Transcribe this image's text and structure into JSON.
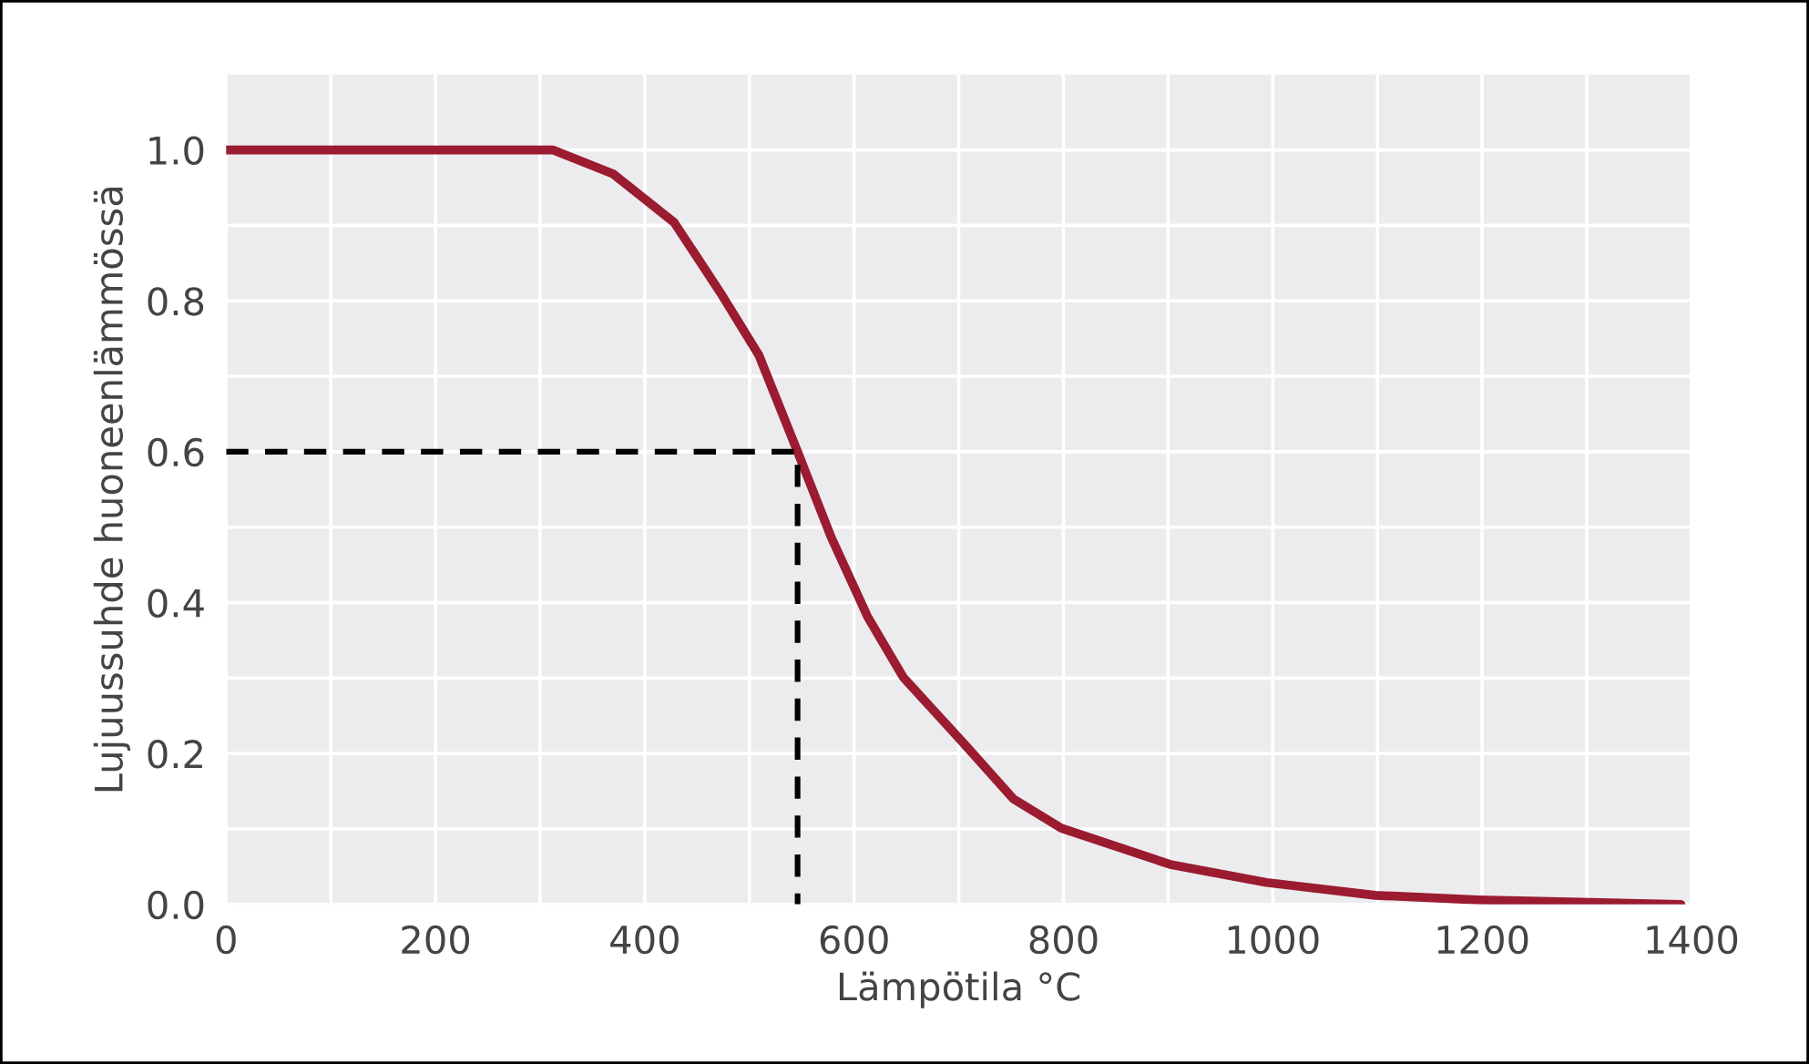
{
  "chart_data": {
    "type": "line",
    "xlabel": "Lämpötila °C",
    "ylabel": "Lujuussuhde huoneenlämmössä",
    "series": [
      {
        "color": "#9b1b30",
        "x": [
          0,
          100,
          200,
          312,
          370,
          428,
          474,
          509,
          546,
          578,
          613,
          647,
          705,
          752,
          798,
          902,
          994,
          1098,
          1196,
          1390
        ],
        "values": [
          1.0,
          1.0,
          1.0,
          1.0,
          0.968,
          0.904,
          0.807,
          0.728,
          0.6,
          0.487,
          0.381,
          0.301,
          0.213,
          0.14,
          0.101,
          0.053,
          0.029,
          0.012,
          0.006,
          0.0
        ]
      },
      {
        "color": "#000000",
        "line_style": "dashed",
        "x": [
          0,
          546,
          546
        ],
        "values": [
          0.6,
          0.6,
          0.0
        ]
      }
    ],
    "xlim": [
      0,
      1400
    ],
    "ylim": [
      0,
      1.1
    ],
    "xticks": [
      0,
      {
        "value": 100,
        "label": null
      },
      200,
      {
        "value": 300,
        "label": null
      },
      400,
      {
        "value": 500,
        "label": null
      },
      600,
      {
        "value": 700,
        "label": null
      },
      800,
      {
        "value": 900,
        "label": null
      },
      1000,
      {
        "value": 1100,
        "label": null
      },
      1200,
      {
        "value": 1300,
        "label": null
      },
      1400
    ],
    "yticks": [
      {
        "value": 0,
        "label": "0.0"
      },
      {
        "value": 0.1,
        "label": null
      },
      0.2,
      {
        "value": 0.3,
        "label": null
      },
      0.4,
      {
        "value": 0.5,
        "label": null
      },
      0.6,
      {
        "value": 0.7,
        "label": null
      },
      0.8,
      {
        "value": 0.9,
        "label": null
      },
      {
        "value": 1.0,
        "label": "1.0"
      }
    ],
    "grid": true,
    "line_style": "solid",
    "marker": "none"
  }
}
